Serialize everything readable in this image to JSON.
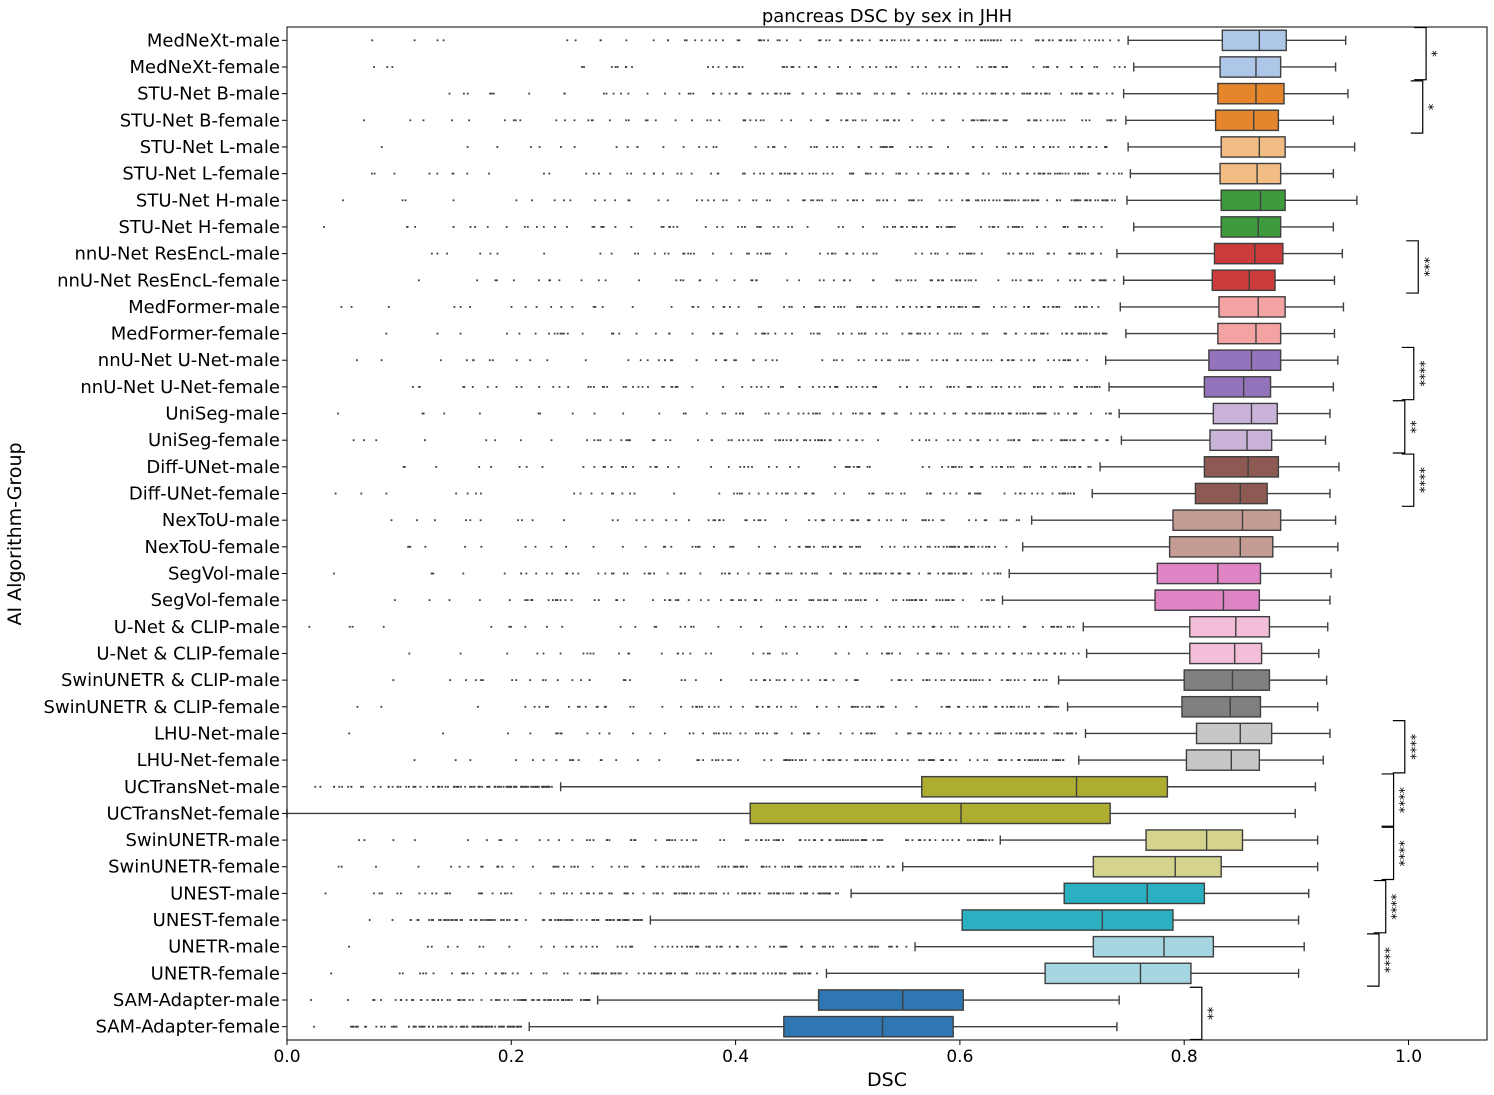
{
  "chart_data": {
    "type": "box",
    "orientation": "horizontal",
    "title": "pancreas DSC by sex in JHH",
    "xlabel": "DSC",
    "ylabel": "AI Algorithm-Group",
    "xlim": [
      0.0,
      1.07
    ],
    "xticks": [
      0.0,
      0.2,
      0.4,
      0.6,
      0.8,
      1.0
    ],
    "xtick_labels": [
      "0.0",
      "0.2",
      "0.4",
      "0.6",
      "0.8",
      "1.0"
    ],
    "groups": [
      {
        "label": "MedNeXt-male",
        "color": "#aec7e8",
        "whislo": 0.75,
        "q1": 0.834,
        "median": 0.867,
        "q3": 0.891,
        "whishi": 0.944
      },
      {
        "label": "MedNeXt-female",
        "color": "#aec7e8",
        "whislo": 0.755,
        "q1": 0.832,
        "median": 0.864,
        "q3": 0.886,
        "whishi": 0.935
      },
      {
        "label": "STU-Net B-male",
        "color": "#e6862c",
        "whislo": 0.746,
        "q1": 0.83,
        "median": 0.864,
        "q3": 0.889,
        "whishi": 0.946
      },
      {
        "label": "STU-Net B-female",
        "color": "#e6862c",
        "whislo": 0.748,
        "q1": 0.828,
        "median": 0.862,
        "q3": 0.884,
        "whishi": 0.933
      },
      {
        "label": "STU-Net L-male",
        "color": "#f2bd85",
        "whislo": 0.75,
        "q1": 0.833,
        "median": 0.867,
        "q3": 0.89,
        "whishi": 0.952
      },
      {
        "label": "STU-Net L-female",
        "color": "#f2bd85",
        "whislo": 0.752,
        "q1": 0.832,
        "median": 0.865,
        "q3": 0.886,
        "whishi": 0.933
      },
      {
        "label": "STU-Net H-male",
        "color": "#3d9a3d",
        "whislo": 0.749,
        "q1": 0.833,
        "median": 0.868,
        "q3": 0.89,
        "whishi": 0.954
      },
      {
        "label": "STU-Net H-female",
        "color": "#3d9a3d",
        "whislo": 0.755,
        "q1": 0.833,
        "median": 0.866,
        "q3": 0.886,
        "whishi": 0.933
      },
      {
        "label": "nnU-Net ResEncL-male",
        "color": "#cc3b3b",
        "whislo": 0.74,
        "q1": 0.827,
        "median": 0.863,
        "q3": 0.888,
        "whishi": 0.941
      },
      {
        "label": "nnU-Net ResEncL-female",
        "color": "#cc3b3b",
        "whislo": 0.746,
        "q1": 0.825,
        "median": 0.858,
        "q3": 0.881,
        "whishi": 0.934
      },
      {
        "label": "MedFormer-male",
        "color": "#f4a3a3",
        "whislo": 0.743,
        "q1": 0.831,
        "median": 0.866,
        "q3": 0.89,
        "whishi": 0.942
      },
      {
        "label": "MedFormer-female",
        "color": "#f4a3a3",
        "whislo": 0.748,
        "q1": 0.83,
        "median": 0.864,
        "q3": 0.886,
        "whishi": 0.934
      },
      {
        "label": "nnU-Net U-Net-male",
        "color": "#9473bd",
        "whislo": 0.73,
        "q1": 0.822,
        "median": 0.86,
        "q3": 0.886,
        "whishi": 0.937
      },
      {
        "label": "nnU-Net U-Net-female",
        "color": "#9473bd",
        "whislo": 0.733,
        "q1": 0.818,
        "median": 0.853,
        "q3": 0.877,
        "whishi": 0.933
      },
      {
        "label": "UniSeg-male",
        "color": "#c9b3d8",
        "whislo": 0.742,
        "q1": 0.826,
        "median": 0.86,
        "q3": 0.883,
        "whishi": 0.93
      },
      {
        "label": "UniSeg-female",
        "color": "#c9b3d8",
        "whislo": 0.744,
        "q1": 0.823,
        "median": 0.856,
        "q3": 0.878,
        "whishi": 0.926
      },
      {
        "label": "Diff-UNet-male",
        "color": "#8c5a52",
        "whislo": 0.725,
        "q1": 0.818,
        "median": 0.857,
        "q3": 0.884,
        "whishi": 0.938
      },
      {
        "label": "Diff-UNet-female",
        "color": "#8c5a52",
        "whislo": 0.718,
        "q1": 0.81,
        "median": 0.85,
        "q3": 0.874,
        "whishi": 0.93
      },
      {
        "label": "NexToU-male",
        "color": "#c49c94",
        "whislo": 0.664,
        "q1": 0.79,
        "median": 0.852,
        "q3": 0.886,
        "whishi": 0.935
      },
      {
        "label": "NexToU-female",
        "color": "#c49c94",
        "whislo": 0.656,
        "q1": 0.787,
        "median": 0.85,
        "q3": 0.879,
        "whishi": 0.937
      },
      {
        "label": "SegVol-male",
        "color": "#df84c4",
        "whislo": 0.644,
        "q1": 0.776,
        "median": 0.83,
        "q3": 0.868,
        "whishi": 0.931
      },
      {
        "label": "SegVol-female",
        "color": "#df84c4",
        "whislo": 0.638,
        "q1": 0.774,
        "median": 0.835,
        "q3": 0.867,
        "whishi": 0.93
      },
      {
        "label": "U-Net & CLIP-male",
        "color": "#f2bed8",
        "whislo": 0.71,
        "q1": 0.805,
        "median": 0.846,
        "q3": 0.876,
        "whishi": 0.928
      },
      {
        "label": "U-Net & CLIP-female",
        "color": "#f2bed8",
        "whislo": 0.713,
        "q1": 0.805,
        "median": 0.845,
        "q3": 0.869,
        "whishi": 0.92
      },
      {
        "label": "SwinUNETR & CLIP-male",
        "color": "#808080",
        "whislo": 0.688,
        "q1": 0.8,
        "median": 0.843,
        "q3": 0.876,
        "whishi": 0.927
      },
      {
        "label": "SwinUNETR & CLIP-female",
        "color": "#808080",
        "whislo": 0.696,
        "q1": 0.798,
        "median": 0.841,
        "q3": 0.868,
        "whishi": 0.919
      },
      {
        "label": "LHU-Net-male",
        "color": "#c7c7c7",
        "whislo": 0.712,
        "q1": 0.811,
        "median": 0.85,
        "q3": 0.878,
        "whishi": 0.93
      },
      {
        "label": "LHU-Net-female",
        "color": "#c7c7c7",
        "whislo": 0.706,
        "q1": 0.802,
        "median": 0.842,
        "q3": 0.867,
        "whishi": 0.924
      },
      {
        "label": "UCTransNet-male",
        "color": "#adad31",
        "whislo": 0.244,
        "q1": 0.566,
        "median": 0.704,
        "q3": 0.785,
        "whishi": 0.917
      },
      {
        "label": "UCTransNet-female",
        "color": "#adad31",
        "whislo": 0.0,
        "q1": 0.413,
        "median": 0.601,
        "q3": 0.734,
        "whishi": 0.899
      },
      {
        "label": "SwinUNETR-male",
        "color": "#d4d48e",
        "whislo": 0.636,
        "q1": 0.766,
        "median": 0.82,
        "q3": 0.852,
        "whishi": 0.919
      },
      {
        "label": "SwinUNETR-female",
        "color": "#d4d48e",
        "whislo": 0.549,
        "q1": 0.719,
        "median": 0.792,
        "q3": 0.833,
        "whishi": 0.919
      },
      {
        "label": "UNEST-male",
        "color": "#2bb0c2",
        "whislo": 0.503,
        "q1": 0.693,
        "median": 0.767,
        "q3": 0.818,
        "whishi": 0.911
      },
      {
        "label": "UNEST-female",
        "color": "#2bb0c2",
        "whislo": 0.324,
        "q1": 0.602,
        "median": 0.727,
        "q3": 0.79,
        "whishi": 0.902
      },
      {
        "label": "UNETR-male",
        "color": "#a6d6e1",
        "whislo": 0.56,
        "q1": 0.719,
        "median": 0.782,
        "q3": 0.826,
        "whishi": 0.907
      },
      {
        "label": "UNETR-female",
        "color": "#a6d6e1",
        "whislo": 0.481,
        "q1": 0.676,
        "median": 0.761,
        "q3": 0.806,
        "whishi": 0.902
      },
      {
        "label": "SAM-Adapter-male",
        "color": "#2f77b3",
        "whislo": 0.277,
        "q1": 0.474,
        "median": 0.549,
        "q3": 0.603,
        "whishi": 0.742
      },
      {
        "label": "SAM-Adapter-female",
        "color": "#2f77b3",
        "whislo": 0.216,
        "q1": 0.443,
        "median": 0.531,
        "q3": 0.594,
        "whishi": 0.74
      }
    ],
    "significance": [
      {
        "pair": [
          0,
          1
        ],
        "label": "*",
        "at": 1.005
      },
      {
        "pair": [
          2,
          3
        ],
        "label": "*",
        "at": 1.002
      },
      {
        "pair": [
          8,
          9
        ],
        "label": "***",
        "at": 0.998
      },
      {
        "pair": [
          12,
          13
        ],
        "label": "****",
        "at": 0.994
      },
      {
        "pair": [
          14,
          15
        ],
        "label": "**",
        "at": 0.986
      },
      {
        "pair": [
          16,
          17
        ],
        "label": "****",
        "at": 0.994
      },
      {
        "pair": [
          26,
          27
        ],
        "label": "****",
        "at": 0.986
      },
      {
        "pair": [
          28,
          29
        ],
        "label": "****",
        "at": 0.976
      },
      {
        "pair": [
          30,
          31
        ],
        "label": "****",
        "at": 0.976
      },
      {
        "pair": [
          32,
          33
        ],
        "label": "****",
        "at": 0.969
      },
      {
        "pair": [
          34,
          35
        ],
        "label": "****",
        "at": 0.963
      },
      {
        "pair": [
          36,
          37
        ],
        "label": "**",
        "at": 0.805
      }
    ]
  }
}
